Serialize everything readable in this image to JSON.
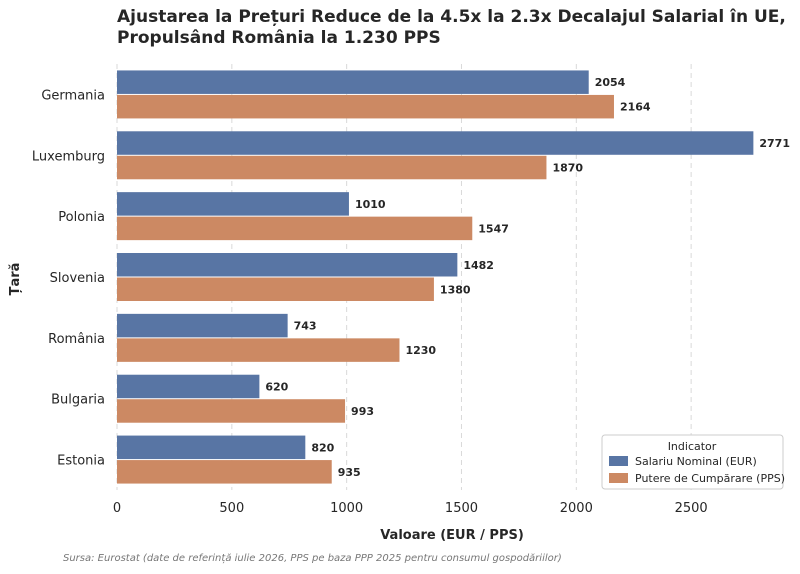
{
  "chart_data": {
    "type": "bar",
    "orientation": "horizontal",
    "title": "Ajustarea la Prețuri Reduce de la 4.5x la 2.3x Decalajul Salarial în UE, Propulsând România la 1.230 PPS",
    "xlabel": "Valoare (EUR / PPS)",
    "ylabel": "Țară",
    "categories": [
      "Germania",
      "Luxemburg",
      "Polonia",
      "Slovenia",
      "România",
      "Bulgaria",
      "Estonia"
    ],
    "series": [
      {
        "name": "Salariu Nominal (EUR)",
        "color": "#5875a4",
        "values": [
          2054,
          2771,
          1010,
          1482,
          743,
          620,
          820
        ],
        "labels": [
          "2054",
          "2771",
          "1010",
          "1482",
          "743",
          "620",
          "820"
        ]
      },
      {
        "name": "Putere de Cumpărare (PPS)",
        "color": "#cc8963",
        "values": [
          2164,
          1870,
          1547,
          1380,
          1230,
          993,
          935
        ],
        "labels": [
          "2164",
          "1870",
          "1547",
          "1380",
          "1230",
          "993",
          "935"
        ]
      }
    ],
    "xlim": [
      0,
      2900
    ],
    "xticks": [
      0,
      500,
      1000,
      1500,
      2000,
      2500
    ],
    "xtick_labels": [
      "0",
      "500",
      "1000",
      "1500",
      "2000",
      "2500"
    ],
    "grid": "vertical dashed",
    "legend": {
      "title": "Indicator",
      "position": "bottom-right"
    }
  },
  "source": "Sursa: Eurostat (date de referință iulie 2026, PPS pe baza PPP 2025 pentru consumul gospodăriilor)"
}
